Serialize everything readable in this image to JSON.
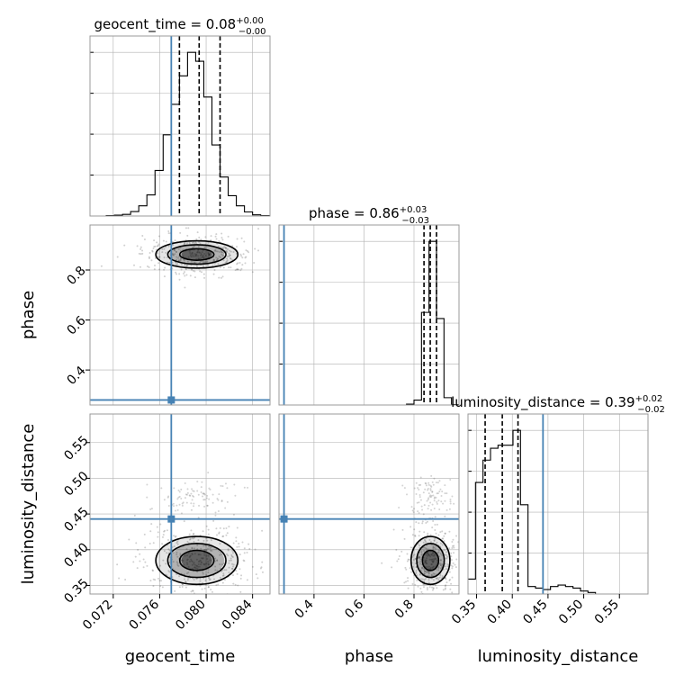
{
  "figure": {
    "type": "corner-plot",
    "params": [
      "geocent_time",
      "phase",
      "luminosity_distance"
    ]
  },
  "colors": {
    "truth": "#4682b4",
    "hist": "#000000",
    "grid": "#b0b0b0",
    "sample": "#555555"
  },
  "chart_data": [
    {
      "type": "histogram",
      "name": "geocent_time-1d",
      "title_param": "geocent_time",
      "title_value": "0.08",
      "title_up": "+0.00",
      "title_down": "−0.00",
      "xlim": [
        0.07,
        0.0855
      ],
      "bin_edges": [
        0.07,
        0.0707,
        0.0714,
        0.0721,
        0.0728,
        0.0735,
        0.0742,
        0.0749,
        0.0756,
        0.0763,
        0.077,
        0.0777,
        0.0784,
        0.0791,
        0.0798,
        0.0805,
        0.0812,
        0.0819,
        0.0826,
        0.0833,
        0.084,
        0.0847,
        0.0855
      ],
      "counts": [
        0,
        0,
        1,
        2,
        4,
        11,
        25,
        52,
        112,
        200,
        275,
        345,
        403,
        381,
        293,
        175,
        96,
        50,
        25,
        10,
        3,
        1
      ],
      "quantiles": [
        0.0777,
        0.0794,
        0.0812
      ],
      "truth": 0.077
    },
    {
      "type": "histogram",
      "name": "phase-1d",
      "title_param": "phase",
      "title_value": "0.86",
      "title_up": "+0.03",
      "title_down": "−0.03",
      "xlim": [
        0.26,
        0.98
      ],
      "bin_edges": [
        0.26,
        0.29,
        0.32,
        0.35,
        0.38,
        0.41,
        0.44,
        0.47,
        0.5,
        0.53,
        0.56,
        0.59,
        0.62,
        0.65,
        0.68,
        0.71,
        0.74,
        0.77,
        0.8,
        0.83,
        0.86,
        0.89,
        0.92,
        0.95,
        0.98
      ],
      "counts": [
        0,
        0,
        0,
        0,
        0,
        0,
        0,
        0,
        0,
        0,
        0,
        0,
        0,
        0,
        0,
        0,
        0,
        2,
        12,
        228,
        403,
        213,
        18,
        1
      ],
      "quantiles": [
        0.84,
        0.865,
        0.89
      ],
      "truth": 0.28
    },
    {
      "type": "histogram",
      "name": "luminosity_distance-1d",
      "title_param": "luminosity_distance",
      "title_value": "0.39",
      "title_up": "+0.02",
      "title_down": "−0.02",
      "xlim": [
        0.338,
        0.59
      ],
      "bin_edges": [
        0.338,
        0.3485,
        0.359,
        0.3695,
        0.38,
        0.3905,
        0.401,
        0.4115,
        0.422,
        0.4325,
        0.443,
        0.4535,
        0.464,
        0.4745,
        0.485,
        0.4955,
        0.506,
        0.5165,
        0.527,
        0.5375,
        0.548,
        0.5585,
        0.569,
        0.5795,
        0.59
      ],
      "counts": [
        10,
        75,
        90,
        98,
        100,
        100,
        110,
        60,
        5,
        4,
        3,
        5,
        6,
        5,
        4,
        2,
        1,
        0,
        0,
        0,
        0,
        0,
        0,
        0
      ],
      "quantiles": [
        0.362,
        0.386,
        0.408
      ],
      "truth": 0.443
    },
    {
      "type": "scatter-contour",
      "name": "geocent_time-phase",
      "x_param": "geocent_time",
      "y_param": "phase",
      "xlim": [
        0.07,
        0.0855
      ],
      "ylim": [
        0.26,
        0.98
      ],
      "center": [
        0.0792,
        0.862
      ],
      "truth": [
        0.077,
        0.28
      ]
    },
    {
      "type": "scatter-contour",
      "name": "geocent_time-luminosity_distance",
      "x_param": "geocent_time",
      "y_param": "luminosity_distance",
      "xlim": [
        0.07,
        0.0855
      ],
      "ylim": [
        0.338,
        0.59
      ],
      "center": [
        0.0792,
        0.385
      ],
      "truth": [
        0.077,
        0.443
      ]
    },
    {
      "type": "scatter-contour",
      "name": "phase-luminosity_distance",
      "x_param": "phase",
      "y_param": "luminosity_distance",
      "xlim": [
        0.26,
        0.98
      ],
      "ylim": [
        0.338,
        0.59
      ],
      "center": [
        0.866,
        0.385
      ],
      "truth": [
        0.28,
        0.443
      ]
    }
  ],
  "axes": {
    "geocent_time": {
      "label": "geocent_time",
      "ticks": [
        "0.072",
        "0.076",
        "0.080",
        "0.084"
      ]
    },
    "phase": {
      "label": "phase",
      "ticks": [
        "0.4",
        "0.6",
        "0.8"
      ]
    },
    "luminosity_distance": {
      "label": "luminosity_distance",
      "ticks": [
        "0.35",
        "0.40",
        "0.45",
        "0.50",
        "0.55"
      ]
    }
  }
}
